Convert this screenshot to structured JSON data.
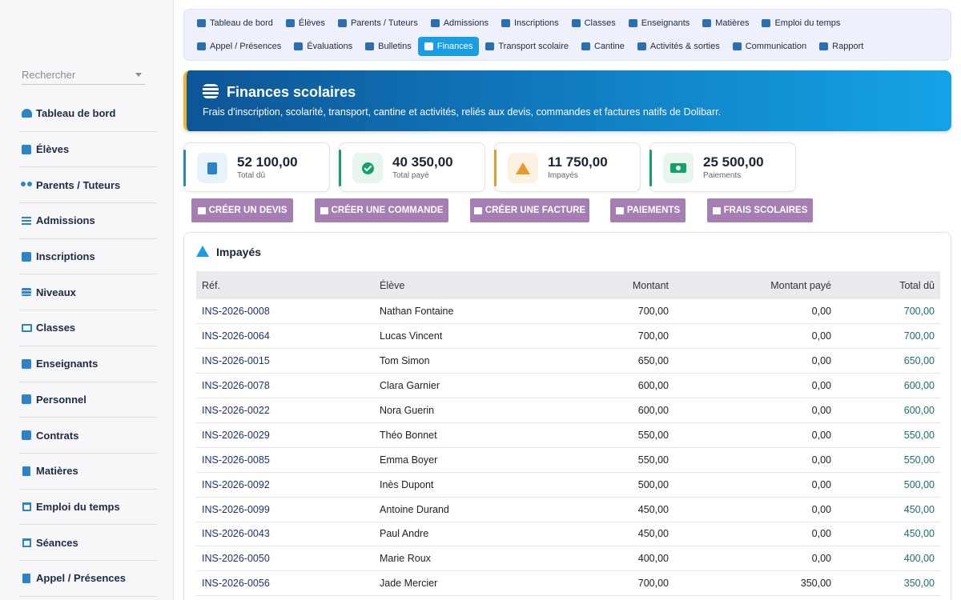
{
  "search": {
    "placeholder": "Rechercher"
  },
  "sidebar": {
    "items": [
      {
        "label": "Tableau de bord",
        "icon": "gauge-icon"
      },
      {
        "label": "Élèves",
        "icon": "student-icon"
      },
      {
        "label": "Parents / Tuteurs",
        "icon": "users-icon"
      },
      {
        "label": "Admissions",
        "icon": "list-icon"
      },
      {
        "label": "Inscriptions",
        "icon": "clipboard-icon"
      },
      {
        "label": "Niveaux",
        "icon": "layers-icon"
      },
      {
        "label": "Classes",
        "icon": "monitor-icon"
      },
      {
        "label": "Enseignants",
        "icon": "teacher-icon"
      },
      {
        "label": "Personnel",
        "icon": "person-icon"
      },
      {
        "label": "Contrats",
        "icon": "contract-icon"
      },
      {
        "label": "Matières",
        "icon": "book-icon"
      },
      {
        "label": "Emploi du temps",
        "icon": "calendar-icon"
      },
      {
        "label": "Séances",
        "icon": "calendar-check-icon"
      },
      {
        "label": "Appel / Présences",
        "icon": "clipboard-list-icon"
      }
    ]
  },
  "topnav": {
    "row1": [
      "Tableau de bord",
      "Élèves",
      "Parents / Tuteurs",
      "Admissions",
      "Inscriptions",
      "Classes",
      "Enseignants",
      "Matières",
      "Emploi du temps"
    ],
    "row2": [
      "Appel / Présences",
      "Évaluations",
      "Bulletins",
      "Finances",
      "Transport scolaire",
      "Cantine",
      "Activités & sorties",
      "Communication",
      "Rapport"
    ],
    "active": "Finances"
  },
  "banner": {
    "title": "Finances scolaires",
    "subtitle": "Frais d'inscription, scolarité, transport, cantine et activités, reliés aux devis, commandes et factures natifs de Dolibarr."
  },
  "stats": [
    {
      "value": "52 100,00",
      "label": "Total dû",
      "icon": "invoice-dollar-icon",
      "color": "#2b84c9"
    },
    {
      "value": "40 350,00",
      "label": "Total payé",
      "icon": "check-circle-icon",
      "color": "#14a06b"
    },
    {
      "value": "11 750,00",
      "label": "Impayés",
      "icon": "warning-icon",
      "color": "#e69a2b"
    },
    {
      "value": "25 500,00",
      "label": "Paiements",
      "icon": "money-bill-icon",
      "color": "#14a06b"
    }
  ],
  "actions": [
    {
      "label": "CRÉER UN DEVIS",
      "icon": "edit-icon"
    },
    {
      "label": "CRÉER UNE COMMANDE",
      "icon": "cart-icon"
    },
    {
      "label": "CRÉER UNE FACTURE",
      "icon": "file-icon"
    },
    {
      "label": "PAIEMENTS",
      "icon": "plus-icon"
    },
    {
      "label": "FRAIS SCOLAIRES",
      "icon": "list-icon"
    }
  ],
  "unpaid": {
    "title": "Impayés",
    "columns": [
      "Réf.",
      "Élève",
      "Montant",
      "Montant payé",
      "Total dû"
    ],
    "rows": [
      [
        "INS-2026-0008",
        "Nathan Fontaine",
        "700,00",
        "0,00",
        "700,00"
      ],
      [
        "INS-2026-0064",
        "Lucas Vincent",
        "700,00",
        "0,00",
        "700,00"
      ],
      [
        "INS-2026-0015",
        "Tom Simon",
        "650,00",
        "0,00",
        "650,00"
      ],
      [
        "INS-2026-0078",
        "Clara Garnier",
        "600,00",
        "0,00",
        "600,00"
      ],
      [
        "INS-2026-0022",
        "Nora Guerin",
        "600,00",
        "0,00",
        "600,00"
      ],
      [
        "INS-2026-0029",
        "Théo Bonnet",
        "550,00",
        "0,00",
        "550,00"
      ],
      [
        "INS-2026-0085",
        "Emma Boyer",
        "550,00",
        "0,00",
        "550,00"
      ],
      [
        "INS-2026-0092",
        "Inès Dupont",
        "500,00",
        "0,00",
        "500,00"
      ],
      [
        "INS-2026-0099",
        "Antoine Durand",
        "450,00",
        "0,00",
        "450,00"
      ],
      [
        "INS-2026-0043",
        "Paul Andre",
        "450,00",
        "0,00",
        "450,00"
      ],
      [
        "INS-2026-0050",
        "Marie Roux",
        "400,00",
        "0,00",
        "400,00"
      ],
      [
        "INS-2026-0056",
        "Jade Mercier",
        "700,00",
        "350,00",
        "350,00"
      ]
    ]
  }
}
